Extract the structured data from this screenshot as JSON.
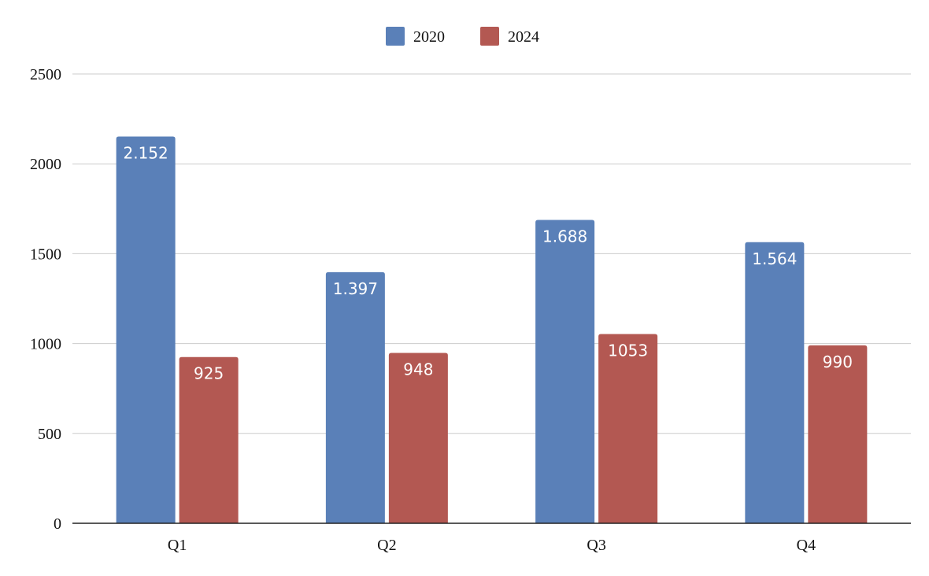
{
  "chart_data": {
    "type": "bar",
    "categories": [
      "Q1",
      "Q2",
      "Q3",
      "Q4"
    ],
    "series": [
      {
        "name": "2020",
        "color": "#5a80b8",
        "values": [
          2152,
          1397,
          1688,
          1564
        ],
        "labels": [
          "2.152",
          "1.397",
          "1.688",
          "1.564"
        ]
      },
      {
        "name": "2024",
        "color": "#b35852",
        "values": [
          925,
          948,
          1053,
          990
        ],
        "labels": [
          "925",
          "948",
          "1053",
          "990"
        ]
      }
    ],
    "yticks": [
      "0",
      "500",
      "1000",
      "1500",
      "2000",
      "2500"
    ],
    "ylim": [
      0,
      2500
    ],
    "title": "",
    "xlabel": "",
    "ylabel": "",
    "grid": true,
    "legend": "top-center"
  }
}
